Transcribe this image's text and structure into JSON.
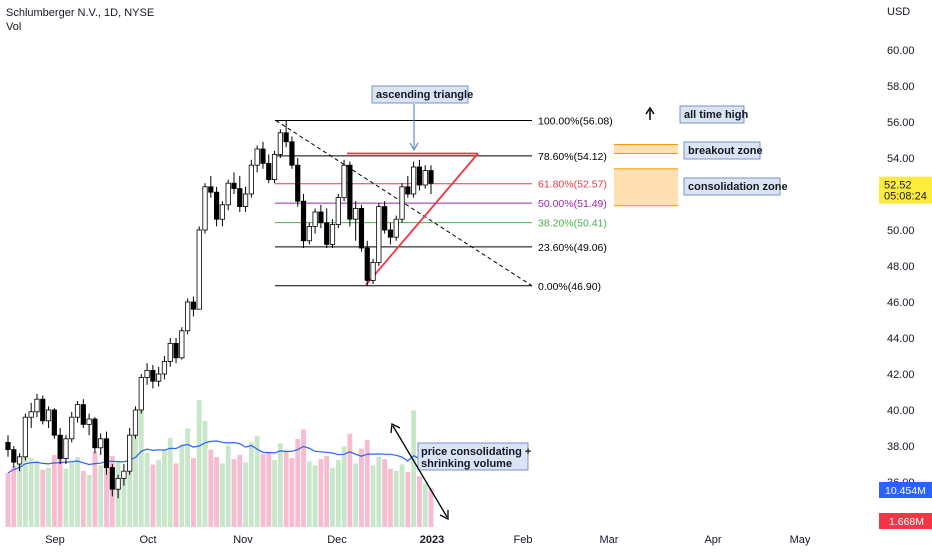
{
  "header": {
    "symbol": "Schlumberger N.V., 1D, NYSE",
    "volume_label": "Vol",
    "currency": "USD"
  },
  "colors": {
    "up": "#26a69a",
    "down": "#ef5350",
    "candle_body_up": "#ffffff",
    "candle_body_down": "#000000",
    "vol_up": "#c8e6c9",
    "vol_down": "#f8bbd0",
    "vol_ma": "#2962ff",
    "fib_1": "#000000",
    "fib_0786": "#000000",
    "fib_0618": "#f23645",
    "fib_05": "#9c27b0",
    "fib_0382": "#4caf50",
    "fib_0236": "#000000",
    "fib_0": "#000000",
    "triangle": "#f23645",
    "zone": "#ffe0b2",
    "zone_line": "#ff9800",
    "price_tag": "#ffeb3b",
    "vol_tag": "#2962ff",
    "vol2_tag": "#f23645"
  },
  "chart_data": {
    "type": "candlestick",
    "title": "Schlumberger N.V., 1D, NYSE",
    "ylabel": "USD",
    "ylim": [
      35,
      61.5
    ],
    "y_ticks": [
      "60.00",
      "58.00",
      "56.00",
      "54.00",
      "52.00",
      "50.00",
      "48.00",
      "46.00",
      "44.00",
      "42.00",
      "40.00",
      "38.00",
      "36.00"
    ],
    "x_ticks": [
      "Sep",
      "Oct",
      "Nov",
      "Dec",
      "2023",
      "Feb",
      "Mar",
      "Apr",
      "May"
    ],
    "candles_approx": [
      [
        38.2,
        38.6,
        37.4,
        37.8
      ],
      [
        37.8,
        38.0,
        36.8,
        37.1
      ],
      [
        37.0,
        37.6,
        36.6,
        37.4
      ],
      [
        37.4,
        39.8,
        37.2,
        39.6
      ],
      [
        39.6,
        40.4,
        39.0,
        39.9
      ],
      [
        39.9,
        40.9,
        39.6,
        40.6
      ],
      [
        40.6,
        40.8,
        39.2,
        39.4
      ],
      [
        39.4,
        40.2,
        39.0,
        40.0
      ],
      [
        40.0,
        40.1,
        38.4,
        38.6
      ],
      [
        38.6,
        39.0,
        37.0,
        37.3
      ],
      [
        37.3,
        38.6,
        37.0,
        38.4
      ],
      [
        38.4,
        39.9,
        38.2,
        39.6
      ],
      [
        39.6,
        40.5,
        39.3,
        40.3
      ],
      [
        40.3,
        40.6,
        39.0,
        39.2
      ],
      [
        39.2,
        39.8,
        38.6,
        39.5
      ],
      [
        39.5,
        39.6,
        37.6,
        37.9
      ],
      [
        37.9,
        38.7,
        37.5,
        38.4
      ],
      [
        38.4,
        38.8,
        36.4,
        36.8
      ],
      [
        36.8,
        37.0,
        35.2,
        35.6
      ],
      [
        35.6,
        36.4,
        35.1,
        36.2
      ],
      [
        36.2,
        37.0,
        35.8,
        36.6
      ],
      [
        36.6,
        39.0,
        36.4,
        38.6
      ],
      [
        38.6,
        40.2,
        38.4,
        40.0
      ],
      [
        40.0,
        42.0,
        39.8,
        41.8
      ],
      [
        41.8,
        42.6,
        41.4,
        42.2
      ],
      [
        42.2,
        42.5,
        41.2,
        41.6
      ],
      [
        41.6,
        42.4,
        41.3,
        42.0
      ],
      [
        42.0,
        43.0,
        41.7,
        42.7
      ],
      [
        42.7,
        44.0,
        42.4,
        43.7
      ],
      [
        43.7,
        44.0,
        42.6,
        42.9
      ],
      [
        42.9,
        44.6,
        42.8,
        44.4
      ],
      [
        44.4,
        46.2,
        44.2,
        46.0
      ],
      [
        46.0,
        46.3,
        45.2,
        45.6
      ],
      [
        45.6,
        50.2,
        45.6,
        50.0
      ],
      [
        50.0,
        52.6,
        49.8,
        52.4
      ],
      [
        52.4,
        53.0,
        51.8,
        52.1
      ],
      [
        52.1,
        52.4,
        50.2,
        50.6
      ],
      [
        50.6,
        51.6,
        50.2,
        51.4
      ],
      [
        51.4,
        52.8,
        51.1,
        52.6
      ],
      [
        52.6,
        53.2,
        52.0,
        52.3
      ],
      [
        52.3,
        53.0,
        51.0,
        51.3
      ],
      [
        51.3,
        52.4,
        51.0,
        52.0
      ],
      [
        52.0,
        53.9,
        51.8,
        53.6
      ],
      [
        53.6,
        54.7,
        53.2,
        54.5
      ],
      [
        54.5,
        54.9,
        53.4,
        53.7
      ],
      [
        53.7,
        54.2,
        52.6,
        52.8
      ],
      [
        52.8,
        54.4,
        52.6,
        54.2
      ],
      [
        54.2,
        55.6,
        54.0,
        55.4
      ],
      [
        55.4,
        56.1,
        54.6,
        54.9
      ],
      [
        54.9,
        55.2,
        53.4,
        53.6
      ],
      [
        53.6,
        54.0,
        51.3,
        51.6
      ],
      [
        51.6,
        52.0,
        49.0,
        49.4
      ],
      [
        49.4,
        50.4,
        49.2,
        50.2
      ],
      [
        50.2,
        51.2,
        49.8,
        51.0
      ],
      [
        51.0,
        51.4,
        50.1,
        50.4
      ],
      [
        50.4,
        51.2,
        49.0,
        49.2
      ],
      [
        49.2,
        50.6,
        49.0,
        50.3
      ],
      [
        50.3,
        52.0,
        50.1,
        51.8
      ],
      [
        51.8,
        53.9,
        51.6,
        53.6
      ],
      [
        53.6,
        53.8,
        50.2,
        50.6
      ],
      [
        50.6,
        51.6,
        49.4,
        51.2
      ],
      [
        51.2,
        51.4,
        48.8,
        49.0
      ],
      [
        49.0,
        49.4,
        46.9,
        47.2
      ],
      [
        47.2,
        48.4,
        47.0,
        48.2
      ],
      [
        48.2,
        51.5,
        48.0,
        51.3
      ],
      [
        51.3,
        51.6,
        49.8,
        50.0
      ],
      [
        50.0,
        50.4,
        49.2,
        49.6
      ],
      [
        49.6,
        50.8,
        49.4,
        50.6
      ],
      [
        50.6,
        52.6,
        50.4,
        52.4
      ],
      [
        52.4,
        53.0,
        51.8,
        52.0
      ],
      [
        52.0,
        53.8,
        51.8,
        53.5
      ],
      [
        53.5,
        53.9,
        52.2,
        52.5
      ],
      [
        52.5,
        53.6,
        52.3,
        53.3
      ],
      [
        53.3,
        53.6,
        52.0,
        52.6
      ]
    ],
    "volume_approx_m": [
      10.2,
      11.5,
      12.0,
      14.0,
      13.0,
      12.5,
      10.8,
      11.2,
      13.6,
      12.8,
      11.0,
      12.4,
      13.2,
      10.6,
      9.8,
      14.2,
      11.6,
      15.0,
      13.4,
      12.2,
      10.4,
      16.2,
      18.0,
      22.0,
      14.0,
      11.8,
      12.6,
      14.4,
      16.8,
      12.0,
      15.6,
      18.6,
      13.0,
      24.0,
      20.0,
      14.6,
      13.2,
      12.0,
      15.4,
      12.8,
      13.6,
      12.2,
      16.0,
      17.2,
      13.8,
      14.2,
      12.6,
      15.8,
      14.4,
      13.0,
      16.6,
      18.4,
      12.4,
      11.6,
      12.8,
      13.4,
      11.2,
      12.6,
      15.2,
      17.6,
      12.0,
      14.8,
      16.4,
      11.6,
      13.2,
      12.8,
      11.0,
      10.6,
      11.8,
      10.4,
      22.0,
      9.6,
      8.2,
      7.4
    ],
    "volume_ma_label": "10.454M",
    "volume_last_label": "1.668M",
    "last_price": "52.52",
    "countdown": "05:08:24",
    "fibonacci": [
      {
        "ratio": "100.00%",
        "price": 56.08,
        "label": "100.00%(56.08)"
      },
      {
        "ratio": "78.60%",
        "price": 54.12,
        "label": "78.60%(54.12)"
      },
      {
        "ratio": "61.80%",
        "price": 52.57,
        "label": "61.80%(52.57)"
      },
      {
        "ratio": "50.00%",
        "price": 51.49,
        "label": "50.00%(51.49)"
      },
      {
        "ratio": "38.20%",
        "price": 50.41,
        "label": "38.20%(50.41)"
      },
      {
        "ratio": "23.60%",
        "price": 49.06,
        "label": "23.60%(49.06)"
      },
      {
        "ratio": "0.00%",
        "price": 46.9,
        "label": "0.00%(46.90)"
      }
    ],
    "annotations": [
      "ascending triangle",
      "all time high",
      "breakout zone",
      "consolidation zone",
      "price consolidating + shrinking volume"
    ],
    "breakout_zone_price": [
      54.25,
      54.75
    ],
    "consolidation_zone_price": [
      51.35,
      53.4
    ]
  }
}
